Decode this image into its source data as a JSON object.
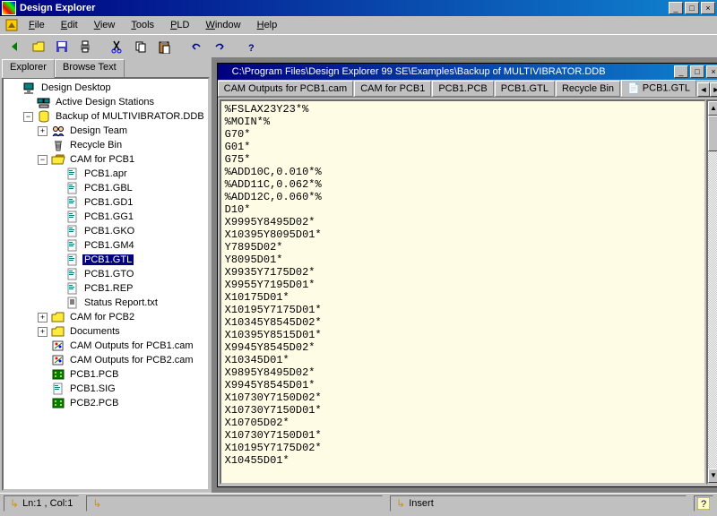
{
  "window": {
    "title": "Design Explorer"
  },
  "menu": [
    "File",
    "Edit",
    "View",
    "Tools",
    "PLD",
    "Window",
    "Help"
  ],
  "left_tabs": {
    "explorer": "Explorer",
    "browse": "Browse Text"
  },
  "tree": {
    "root": "Design Desktop",
    "stations": "Active Design Stations",
    "backup": "Backup of MULTIVIBRATOR.DDB",
    "team": "Design Team",
    "recycle": "Recycle Bin",
    "cam1": "CAM for PCB1",
    "files": [
      "PCB1.apr",
      "PCB1.GBL",
      "PCB1.GD1",
      "PCB1.GG1",
      "PCB1.GKO",
      "PCB1.GM4",
      "PCB1.GTL",
      "PCB1.GTO",
      "PCB1.REP",
      "Status Report.txt"
    ],
    "cam2": "CAM for PCB2",
    "docs": "Documents",
    "out1": "CAM Outputs for PCB1.cam",
    "out2": "CAM Outputs for PCB2.cam",
    "pcb1": "PCB1.PCB",
    "sig": "PCB1.SIG",
    "pcb2": "PCB2.PCB",
    "selected": "PCB1.GTL"
  },
  "doc": {
    "title": "C:\\Program Files\\Design Explorer 99 SE\\Examples\\Backup of MULTIVIBRATOR.DDB",
    "tabs": [
      "CAM Outputs for PCB1.cam",
      "CAM for PCB1",
      "PCB1.PCB",
      "PCB1.GTL",
      "Recycle Bin"
    ],
    "active_tab_extra": "PCB1.GTL",
    "content": "%FSLAX23Y23*%\n%MOIN*%\nG70*\nG01*\nG75*\n%ADD10C,0.010*%\n%ADD11C,0.062*%\n%ADD12C,0.060*%\nD10*\nX9995Y8495D02*\nX10395Y8095D01*\nY7895D02*\nY8095D01*\nX9935Y7175D02*\nX9955Y7195D01*\nX10175D01*\nX10195Y7175D01*\nX10345Y8545D02*\nX10395Y8515D01*\nX9945Y8545D02*\nX10345D01*\nX9895Y8495D02*\nX9945Y8545D01*\nX10730Y7150D02*\nX10730Y7150D01*\nX10705D02*\nX10730Y7150D01*\nX10195Y7175D02*\nX10455D01*"
  },
  "status": {
    "pos": "Ln:1 , Col:1",
    "mode": "Insert"
  },
  "colors": {
    "titlebar_start": "#000080",
    "titlebar_end": "#1084d0",
    "bg": "#c0c0c0",
    "editor_bg": "#fffce6"
  }
}
